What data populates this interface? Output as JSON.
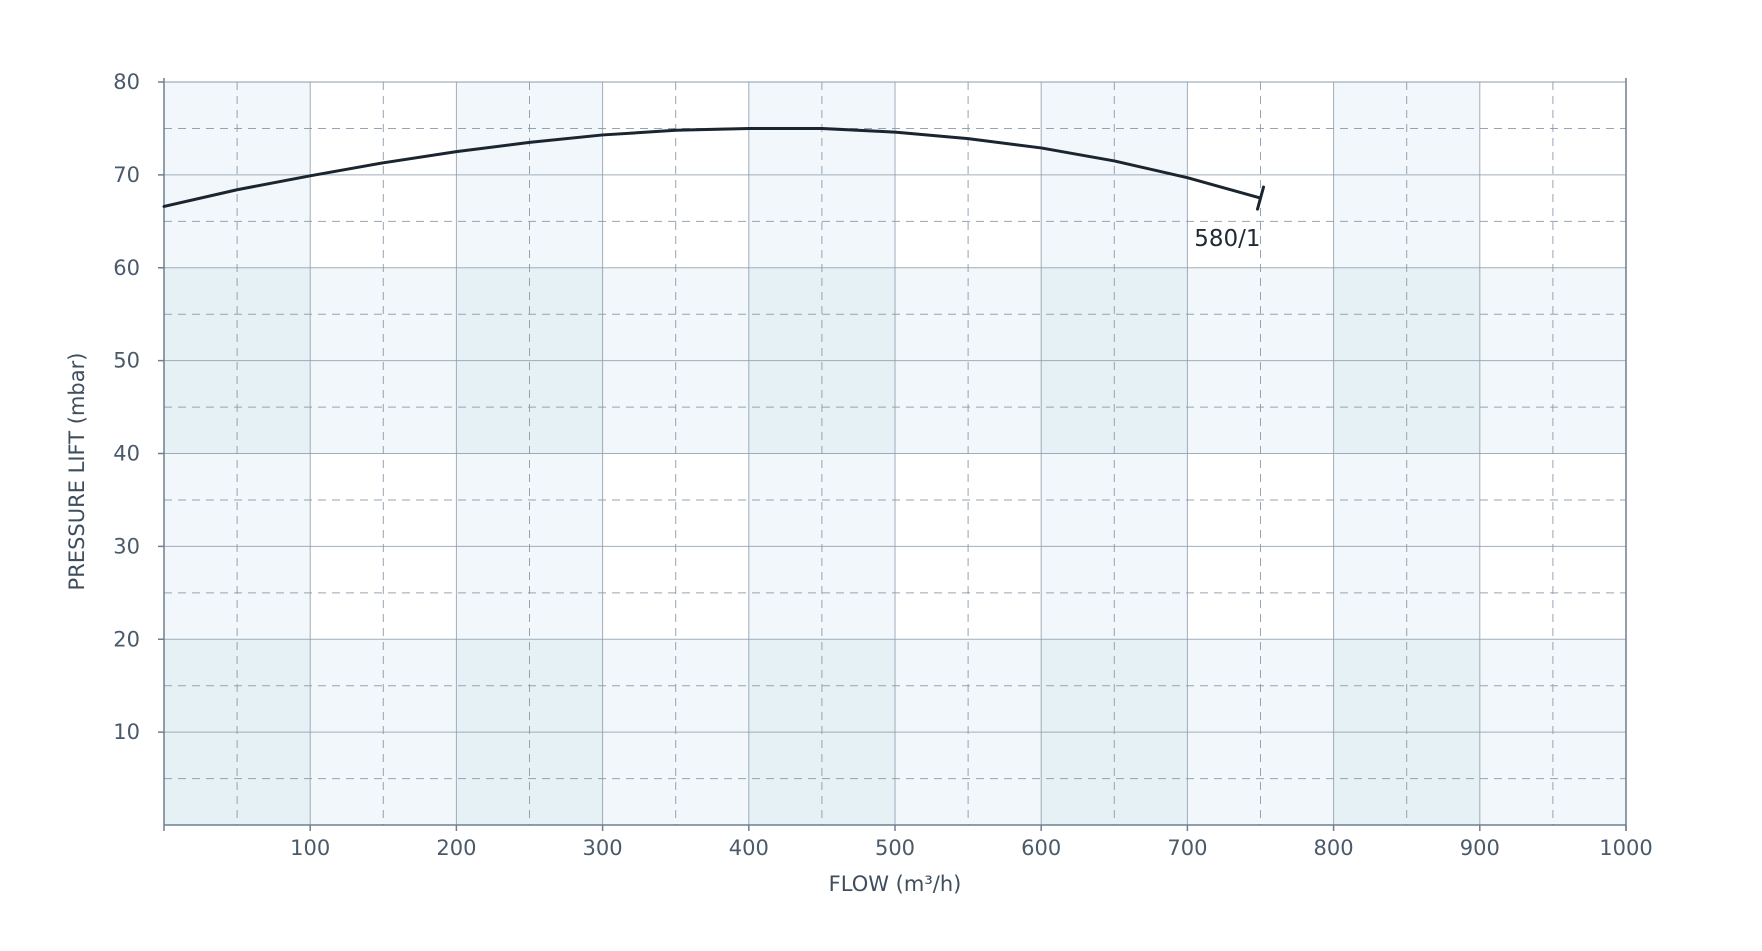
{
  "chart_data": {
    "type": "line",
    "xlabel": "FLOW (m³/h)",
    "ylabel": "PRESSURE LIFT (mbar)",
    "xlim": [
      0,
      1000
    ],
    "ylim": [
      0,
      80
    ],
    "x_ticks": [
      100,
      200,
      300,
      400,
      500,
      600,
      700,
      800,
      900,
      1000
    ],
    "y_ticks": [
      10,
      20,
      30,
      40,
      50,
      60,
      70,
      80
    ],
    "x_tick_labels": [
      "100",
      "200",
      "300",
      "400",
      "500",
      "600",
      "700",
      "800",
      "900",
      "1000"
    ],
    "y_tick_labels": [
      "10",
      "20",
      "30",
      "40",
      "50",
      "60",
      "70",
      "80"
    ],
    "grid": true,
    "series": [
      {
        "name": "580/1",
        "x": [
          0,
          50,
          100,
          150,
          200,
          250,
          300,
          350,
          400,
          450,
          500,
          550,
          600,
          650,
          700,
          750
        ],
        "y": [
          66.6,
          68.4,
          69.9,
          71.3,
          72.5,
          73.5,
          74.3,
          74.8,
          75.0,
          75.0,
          74.6,
          73.9,
          72.9,
          71.5,
          69.7,
          67.5
        ]
      }
    ],
    "colors": {
      "curve": "#1a2530",
      "grid_solid": "#8b9bab",
      "grid_dashed": "#8b9bab",
      "band_light": "#f1f7fa",
      "band_dark": "#e6f1f5",
      "text": "#4a5a6a"
    }
  }
}
